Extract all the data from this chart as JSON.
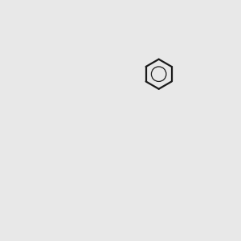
{
  "bg_color": "#e8e8e8",
  "bond_color": "#1a1a1a",
  "N_color": "#2020ee",
  "O_color": "#ee2020",
  "S_color": "#cccc00",
  "F_color": "#cc00cc",
  "figsize": [
    3.0,
    3.0
  ],
  "dpi": 100
}
